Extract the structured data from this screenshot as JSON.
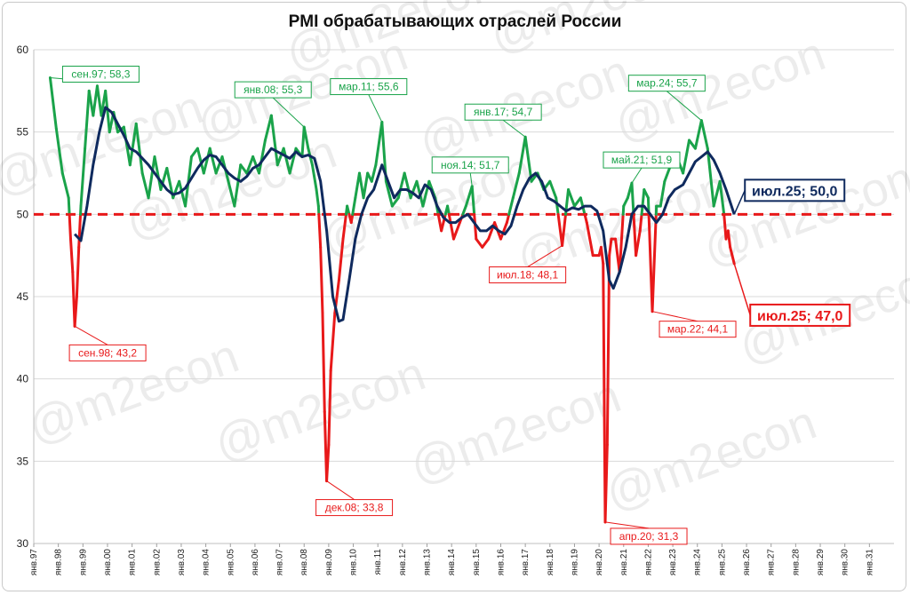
{
  "chart_data": {
    "type": "line",
    "title": "PMI обрабатывающих отраслей России",
    "xlabel": "",
    "ylabel": "",
    "ylim": [
      30,
      60
    ],
    "yticks": [
      30,
      35,
      40,
      45,
      50,
      55,
      60
    ],
    "x_start": "янв.97",
    "x_ticks": [
      "янв.97",
      "янв.98",
      "янв.99",
      "янв.00",
      "янв.01",
      "янв.02",
      "янв.03",
      "янв.04",
      "янв.05",
      "янв.06",
      "янв.07",
      "янв.08",
      "янв.09",
      "янв.10",
      "янв.11",
      "янв.12",
      "янв.13",
      "янв.14",
      "янв.15",
      "янв.16",
      "янв.17",
      "янв.18",
      "янв.19",
      "янв.20",
      "янв.21",
      "янв.22",
      "янв.23",
      "янв.24",
      "янв.25",
      "янв.26",
      "янв.27",
      "янв.28",
      "янв.29",
      "янв.30",
      "янв.31"
    ],
    "threshold": 50,
    "grid": true,
    "legend": "none",
    "colors": {
      "above": "#1aa34a",
      "below": "#e8191a",
      "smoothed": "#0f2a5e",
      "threshold": "#e8191a"
    },
    "series": [
      {
        "role": "pmi",
        "points": [
          [
            "1997-09",
            58.3
          ],
          [
            "1997-12",
            55.2
          ],
          [
            "1998-03",
            52.5
          ],
          [
            "1998-06",
            51.0
          ],
          [
            "1998-07",
            48.5
          ],
          [
            "1998-08",
            46.5
          ],
          [
            "1998-09",
            43.2
          ],
          [
            "1998-10",
            45.0
          ],
          [
            "1998-11",
            48.0
          ],
          [
            "1998-12",
            50.5
          ],
          [
            "1999-02",
            54.0
          ],
          [
            "1999-04",
            57.5
          ],
          [
            "1999-06",
            56.0
          ],
          [
            "1999-08",
            57.8
          ],
          [
            "1999-10",
            56.0
          ],
          [
            "1999-12",
            57.5
          ],
          [
            "2000-02",
            55.0
          ],
          [
            "2000-04",
            56.2
          ],
          [
            "2000-06",
            55.0
          ],
          [
            "2000-09",
            55.3
          ],
          [
            "2000-12",
            53.0
          ],
          [
            "2001-03",
            55.5
          ],
          [
            "2001-06",
            52.5
          ],
          [
            "2001-09",
            51.0
          ],
          [
            "2001-12",
            53.5
          ],
          [
            "2002-03",
            51.5
          ],
          [
            "2002-06",
            52.8
          ],
          [
            "2002-09",
            51.0
          ],
          [
            "2002-12",
            52.0
          ],
          [
            "2003-03",
            50.5
          ],
          [
            "2003-06",
            53.5
          ],
          [
            "2003-09",
            54.0
          ],
          [
            "2003-12",
            52.5
          ],
          [
            "2004-03",
            54.0
          ],
          [
            "2004-06",
            52.5
          ],
          [
            "2004-09",
            53.5
          ],
          [
            "2004-12",
            52.0
          ],
          [
            "2005-03",
            50.5
          ],
          [
            "2005-06",
            53.0
          ],
          [
            "2005-09",
            52.5
          ],
          [
            "2005-12",
            53.5
          ],
          [
            "2006-03",
            52.5
          ],
          [
            "2006-06",
            54.5
          ],
          [
            "2006-09",
            56.0
          ],
          [
            "2006-12",
            53.0
          ],
          [
            "2007-03",
            54.0
          ],
          [
            "2007-06",
            52.5
          ],
          [
            "2007-09",
            54.0
          ],
          [
            "2007-12",
            53.5
          ],
          [
            "2008-01",
            55.3
          ],
          [
            "2008-03",
            54.0
          ],
          [
            "2008-05",
            53.0
          ],
          [
            "2008-07",
            51.5
          ],
          [
            "2008-08",
            50.5
          ],
          [
            "2008-09",
            48.0
          ],
          [
            "2008-10",
            44.0
          ],
          [
            "2008-11",
            38.0
          ],
          [
            "2008-12",
            33.8
          ],
          [
            "2009-01",
            36.0
          ],
          [
            "2009-02",
            40.5
          ],
          [
            "2009-04",
            44.0
          ],
          [
            "2009-06",
            46.0
          ],
          [
            "2009-08",
            48.5
          ],
          [
            "2009-10",
            50.5
          ],
          [
            "2009-12",
            49.5
          ],
          [
            "2010-02",
            51.0
          ],
          [
            "2010-04",
            52.5
          ],
          [
            "2010-06",
            51.0
          ],
          [
            "2010-08",
            52.5
          ],
          [
            "2010-10",
            52.0
          ],
          [
            "2010-12",
            53.0
          ],
          [
            "2011-03",
            55.6
          ],
          [
            "2011-05",
            52.0
          ],
          [
            "2011-08",
            50.5
          ],
          [
            "2011-11",
            51.0
          ],
          [
            "2012-02",
            52.5
          ],
          [
            "2012-05",
            51.0
          ],
          [
            "2012-08",
            52.0
          ],
          [
            "2012-11",
            50.5
          ],
          [
            "2013-02",
            52.0
          ],
          [
            "2013-05",
            51.0
          ],
          [
            "2013-08",
            49.0
          ],
          [
            "2013-11",
            50.5
          ],
          [
            "2014-02",
            48.5
          ],
          [
            "2014-05",
            49.5
          ],
          [
            "2014-08",
            50.5
          ],
          [
            "2014-11",
            51.7
          ],
          [
            "2015-01",
            48.5
          ],
          [
            "2015-04",
            48.0
          ],
          [
            "2015-07",
            48.5
          ],
          [
            "2015-10",
            49.5
          ],
          [
            "2016-01",
            48.5
          ],
          [
            "2016-04",
            49.5
          ],
          [
            "2016-07",
            51.0
          ],
          [
            "2016-10",
            52.5
          ],
          [
            "2017-01",
            54.7
          ],
          [
            "2017-04",
            52.0
          ],
          [
            "2017-07",
            52.5
          ],
          [
            "2017-10",
            51.5
          ],
          [
            "2018-01",
            52.0
          ],
          [
            "2018-04",
            51.0
          ],
          [
            "2018-07",
            48.1
          ],
          [
            "2018-10",
            51.5
          ],
          [
            "2019-01",
            50.5
          ],
          [
            "2019-04",
            51.0
          ],
          [
            "2019-07",
            49.5
          ],
          [
            "2019-10",
            47.5
          ],
          [
            "2020-01",
            47.5
          ],
          [
            "2020-02",
            48.0
          ],
          [
            "2020-03",
            47.0
          ],
          [
            "2020-04",
            31.3
          ],
          [
            "2020-05",
            36.0
          ],
          [
            "2020-06",
            47.5
          ],
          [
            "2020-07",
            48.5
          ],
          [
            "2020-09",
            48.5
          ],
          [
            "2020-11",
            46.5
          ],
          [
            "2021-01",
            50.5
          ],
          [
            "2021-03",
            51.0
          ],
          [
            "2021-05",
            51.9
          ],
          [
            "2021-07",
            47.5
          ],
          [
            "2021-09",
            49.0
          ],
          [
            "2021-11",
            51.5
          ],
          [
            "2022-01",
            51.0
          ],
          [
            "2022-03",
            44.1
          ],
          [
            "2022-05",
            50.5
          ],
          [
            "2022-07",
            50.5
          ],
          [
            "2022-09",
            52.0
          ],
          [
            "2022-12",
            53.0
          ],
          [
            "2023-03",
            53.5
          ],
          [
            "2023-06",
            52.5
          ],
          [
            "2023-09",
            54.5
          ],
          [
            "2023-12",
            54.0
          ],
          [
            "2024-03",
            55.7
          ],
          [
            "2024-06",
            54.0
          ],
          [
            "2024-09",
            50.5
          ],
          [
            "2024-12",
            52.0
          ],
          [
            "2025-02",
            50.0
          ],
          [
            "2025-03",
            48.5
          ],
          [
            "2025-04",
            49.0
          ],
          [
            "2025-05",
            48.0
          ],
          [
            "2025-06",
            47.5
          ],
          [
            "2025-07",
            47.0
          ]
        ]
      },
      {
        "role": "smoothed",
        "points": [
          [
            "1998-09",
            48.8
          ],
          [
            "1998-12",
            48.4
          ],
          [
            "1999-03",
            50.5
          ],
          [
            "1999-06",
            53.0
          ],
          [
            "1999-09",
            55.0
          ],
          [
            "1999-12",
            56.5
          ],
          [
            "2000-03",
            56.2
          ],
          [
            "2000-06",
            55.5
          ],
          [
            "2000-09",
            54.8
          ],
          [
            "2000-12",
            54.0
          ],
          [
            "2001-03",
            53.8
          ],
          [
            "2001-06",
            53.4
          ],
          [
            "2001-09",
            53.0
          ],
          [
            "2001-12",
            52.5
          ],
          [
            "2002-03",
            52.0
          ],
          [
            "2002-06",
            51.5
          ],
          [
            "2002-09",
            51.2
          ],
          [
            "2002-12",
            51.3
          ],
          [
            "2003-03",
            51.6
          ],
          [
            "2003-06",
            52.2
          ],
          [
            "2003-09",
            52.8
          ],
          [
            "2003-12",
            53.3
          ],
          [
            "2004-03",
            53.6
          ],
          [
            "2004-06",
            53.5
          ],
          [
            "2004-09",
            53.0
          ],
          [
            "2004-12",
            52.5
          ],
          [
            "2005-03",
            52.2
          ],
          [
            "2005-06",
            52.0
          ],
          [
            "2005-09",
            52.3
          ],
          [
            "2005-12",
            52.8
          ],
          [
            "2006-03",
            53.0
          ],
          [
            "2006-06",
            53.5
          ],
          [
            "2006-09",
            54.0
          ],
          [
            "2006-12",
            53.8
          ],
          [
            "2007-03",
            53.6
          ],
          [
            "2007-06",
            53.4
          ],
          [
            "2007-09",
            53.8
          ],
          [
            "2007-12",
            53.5
          ],
          [
            "2008-03",
            53.6
          ],
          [
            "2008-06",
            53.4
          ],
          [
            "2008-09",
            52.0
          ],
          [
            "2008-12",
            49.0
          ],
          [
            "2009-03",
            45.0
          ],
          [
            "2009-06",
            43.5
          ],
          [
            "2009-08",
            43.6
          ],
          [
            "2009-11",
            46.0
          ],
          [
            "2010-02",
            48.5
          ],
          [
            "2010-05",
            50.0
          ],
          [
            "2010-08",
            51.0
          ],
          [
            "2010-11",
            51.5
          ],
          [
            "2011-03",
            53.0
          ],
          [
            "2011-06",
            52.0
          ],
          [
            "2011-09",
            51.0
          ],
          [
            "2011-12",
            51.5
          ],
          [
            "2012-03",
            51.5
          ],
          [
            "2012-06",
            51.3
          ],
          [
            "2012-09",
            51.0
          ],
          [
            "2012-12",
            51.8
          ],
          [
            "2013-03",
            51.5
          ],
          [
            "2013-06",
            50.5
          ],
          [
            "2013-09",
            49.8
          ],
          [
            "2013-12",
            49.5
          ],
          [
            "2014-03",
            49.5
          ],
          [
            "2014-06",
            49.8
          ],
          [
            "2014-09",
            50.0
          ],
          [
            "2014-12",
            49.5
          ],
          [
            "2015-03",
            49.0
          ],
          [
            "2015-06",
            49.0
          ],
          [
            "2015-09",
            49.3
          ],
          [
            "2015-12",
            49.0
          ],
          [
            "2016-03",
            48.8
          ],
          [
            "2016-06",
            49.3
          ],
          [
            "2016-09",
            50.5
          ],
          [
            "2016-12",
            51.5
          ],
          [
            "2017-03",
            52.2
          ],
          [
            "2017-06",
            52.5
          ],
          [
            "2017-09",
            52.0
          ],
          [
            "2017-12",
            51.0
          ],
          [
            "2018-03",
            50.8
          ],
          [
            "2018-06",
            50.5
          ],
          [
            "2018-09",
            50.2
          ],
          [
            "2018-12",
            50.4
          ],
          [
            "2019-03",
            50.3
          ],
          [
            "2019-06",
            50.5
          ],
          [
            "2019-09",
            50.5
          ],
          [
            "2019-12",
            50.2
          ],
          [
            "2020-03",
            49.0
          ],
          [
            "2020-06",
            46.0
          ],
          [
            "2020-08",
            45.5
          ],
          [
            "2020-11",
            46.5
          ],
          [
            "2021-02",
            48.0
          ],
          [
            "2021-05",
            50.0
          ],
          [
            "2021-08",
            50.5
          ],
          [
            "2021-11",
            50.5
          ],
          [
            "2022-02",
            50.0
          ],
          [
            "2022-05",
            49.5
          ],
          [
            "2022-08",
            50.0
          ],
          [
            "2022-11",
            51.0
          ],
          [
            "2023-02",
            51.5
          ],
          [
            "2023-06",
            51.8
          ],
          [
            "2023-09",
            52.5
          ],
          [
            "2023-12",
            53.2
          ],
          [
            "2024-03",
            53.5
          ],
          [
            "2024-06",
            53.8
          ],
          [
            "2024-09",
            53.3
          ],
          [
            "2024-12",
            52.5
          ],
          [
            "2025-03",
            51.5
          ],
          [
            "2025-07",
            50.0
          ]
        ]
      }
    ],
    "annotations": [
      {
        "text": "сен.97; 58,3",
        "date": "1997-09",
        "value": 58.3,
        "color": "#1aa34a"
      },
      {
        "text": "сен.98; 43,2",
        "date": "1998-09",
        "value": 43.2,
        "color": "#e8191a"
      },
      {
        "text": "янв.08; 55,3",
        "date": "2008-01",
        "value": 55.3,
        "color": "#1aa34a"
      },
      {
        "text": "дек.08; 33,8",
        "date": "2008-12",
        "value": 33.8,
        "color": "#e8191a"
      },
      {
        "text": "мар.11; 55,6",
        "date": "2011-03",
        "value": 55.6,
        "color": "#1aa34a"
      },
      {
        "text": "ноя.14; 51,7",
        "date": "2014-11",
        "value": 51.7,
        "color": "#1aa34a"
      },
      {
        "text": "янв.17; 54,7",
        "date": "2017-01",
        "value": 54.7,
        "color": "#1aa34a"
      },
      {
        "text": "июл.18; 48,1",
        "date": "2018-07",
        "value": 48.1,
        "color": "#e8191a"
      },
      {
        "text": "апр.20; 31,3",
        "date": "2020-04",
        "value": 31.3,
        "color": "#e8191a"
      },
      {
        "text": "май.21; 51,9",
        "date": "2021-05",
        "value": 51.9,
        "color": "#1aa34a"
      },
      {
        "text": "мар.22; 44,1",
        "date": "2022-03",
        "value": 44.1,
        "color": "#e8191a"
      },
      {
        "text": "мар.24; 55,7",
        "date": "2024-03",
        "value": 55.7,
        "color": "#1aa34a"
      }
    ],
    "callouts": [
      {
        "text": "июл.25; 50,0",
        "date": "2025-07",
        "value": 50.0,
        "color": "#0f2a5e"
      },
      {
        "text": "июл.25; 47,0",
        "date": "2025-07",
        "value": 47.0,
        "color": "#e8191a"
      }
    ],
    "watermark": "@m2econ"
  }
}
